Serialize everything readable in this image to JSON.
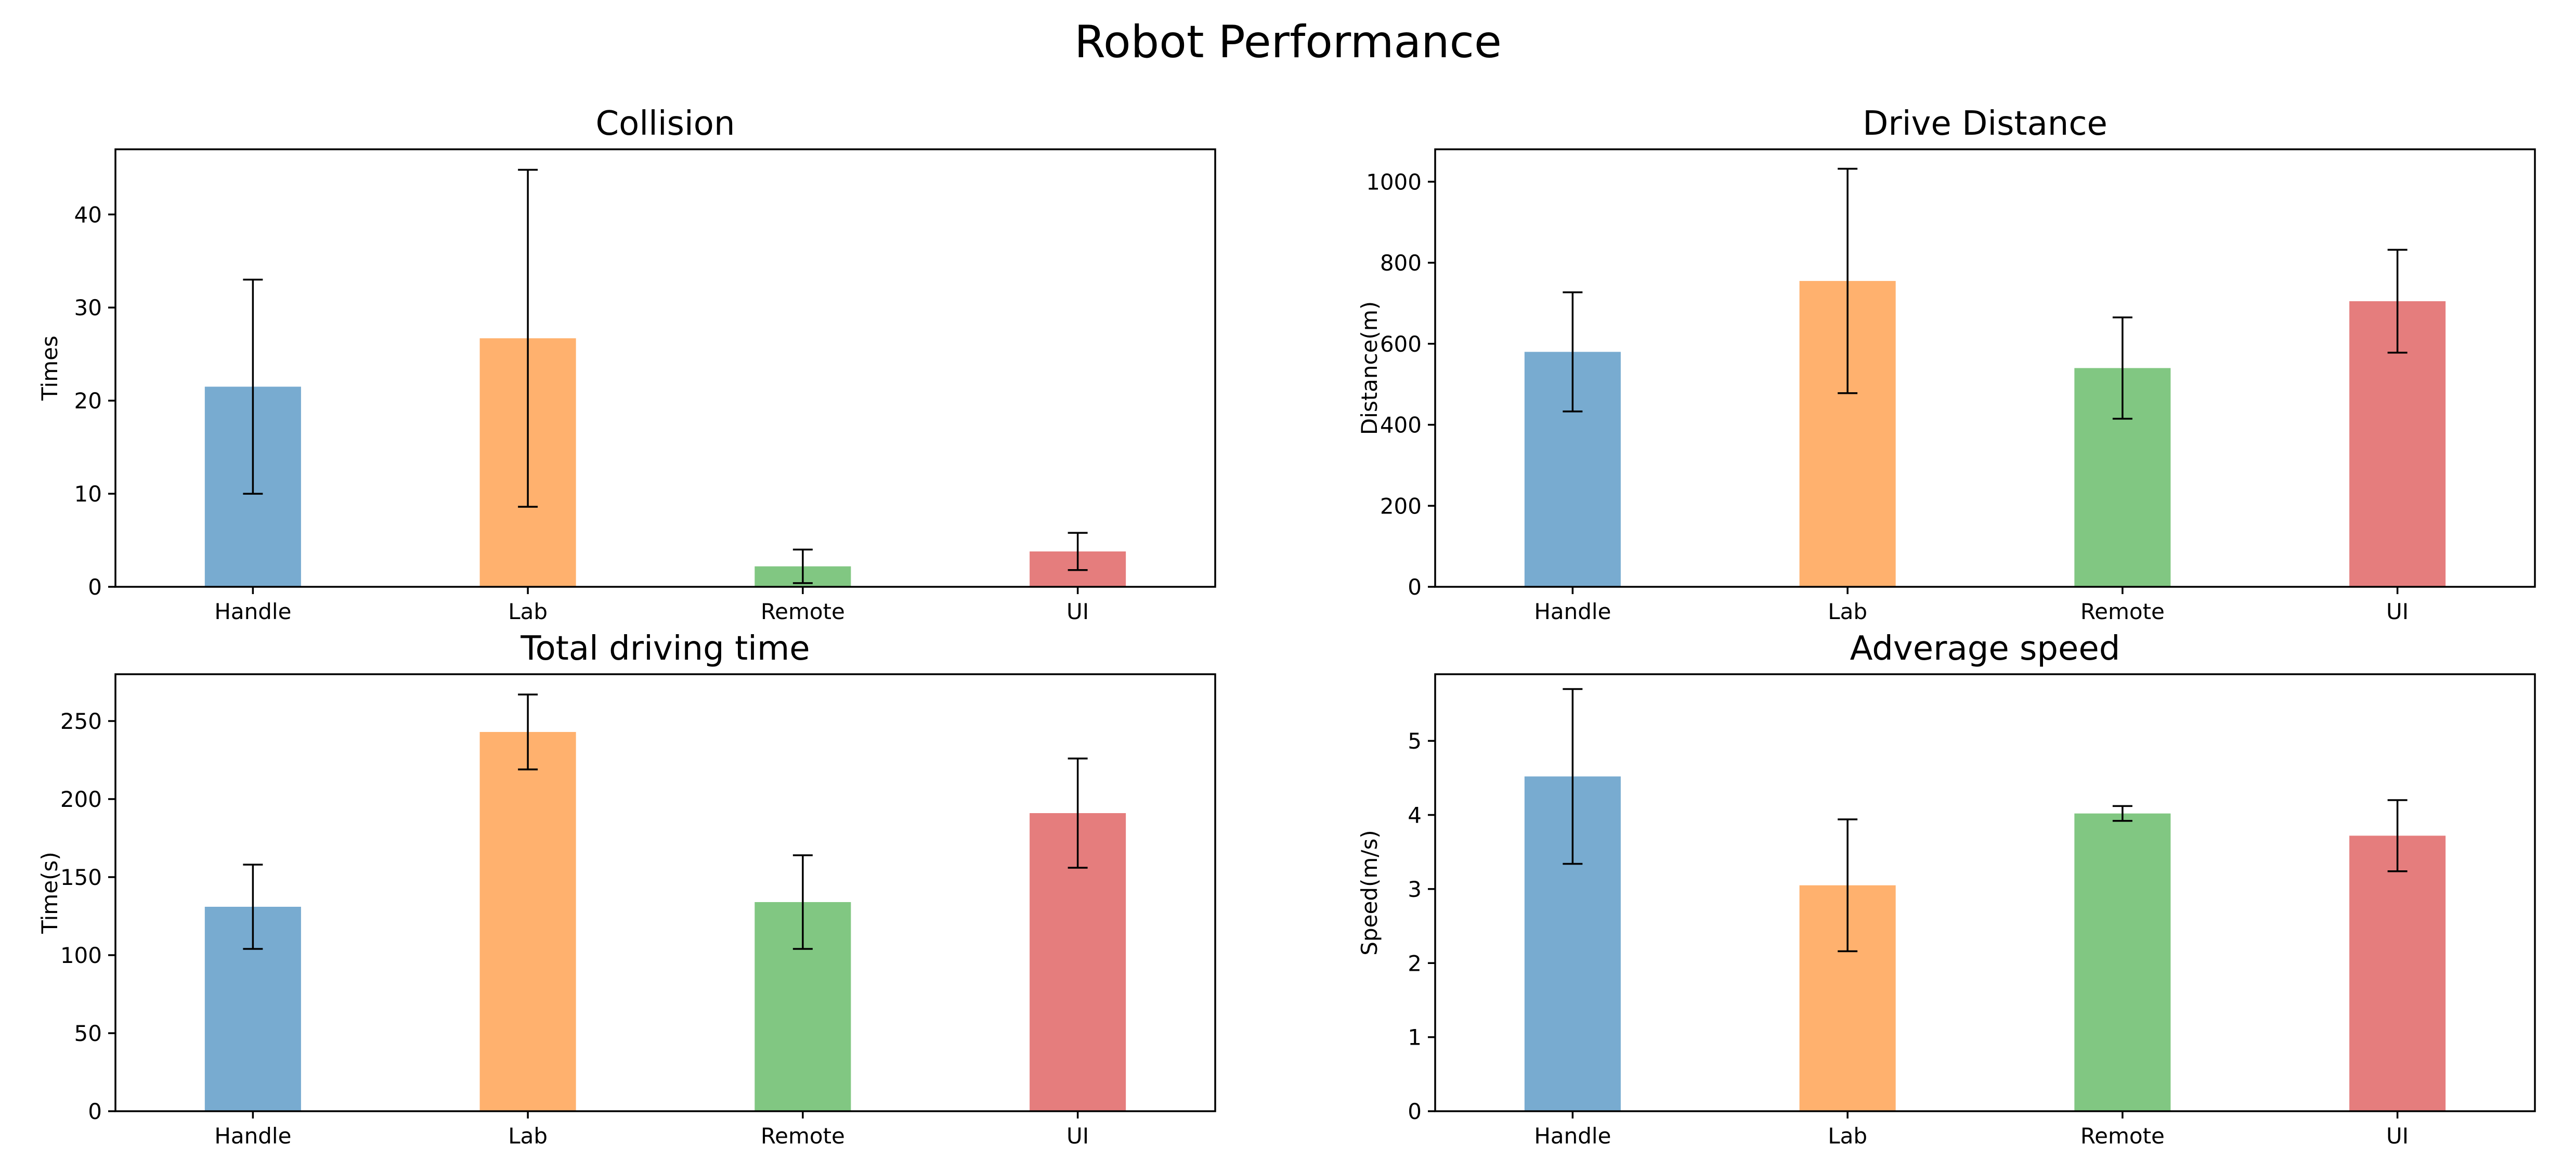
{
  "suptitle": "Robot Performance",
  "colors": {
    "Handle": "#78abd0",
    "Lab": "#ffb16e",
    "Remote": "#81c782",
    "UI": "#e57d7d"
  },
  "chart_data": [
    {
      "type": "bar",
      "title": "Collision",
      "xlabel": "",
      "ylabel": "Times",
      "categories": [
        "Handle",
        "Lab",
        "Remote",
        "UI"
      ],
      "values": [
        21.5,
        26.7,
        2.2,
        3.8
      ],
      "errors": [
        11.5,
        18.1,
        1.8,
        2.0
      ],
      "ylim": [
        0,
        47
      ],
      "yticks": [
        0,
        10,
        20,
        30,
        40
      ]
    },
    {
      "type": "bar",
      "title": "Drive Distance",
      "xlabel": "",
      "ylabel": "Distance(m)",
      "categories": [
        "Handle",
        "Lab",
        "Remote",
        "UI"
      ],
      "values": [
        580,
        755,
        540,
        705
      ],
      "errors": [
        147,
        277,
        125,
        127
      ],
      "ylim": [
        0,
        1080
      ],
      "yticks": [
        0,
        200,
        400,
        600,
        800,
        1000
      ]
    },
    {
      "type": "bar",
      "title": "Total driving time",
      "xlabel": "",
      "ylabel": "Time(s)",
      "categories": [
        "Handle",
        "Lab",
        "Remote",
        "UI"
      ],
      "values": [
        131,
        243,
        134,
        191
      ],
      "errors": [
        27,
        24,
        30,
        35
      ],
      "ylim": [
        0,
        280
      ],
      "yticks": [
        0,
        50,
        100,
        150,
        200,
        250
      ]
    },
    {
      "type": "bar",
      "title": "Adverage speed",
      "xlabel": "",
      "ylabel": "Speed(m/s)",
      "categories": [
        "Handle",
        "Lab",
        "Remote",
        "UI"
      ],
      "values": [
        4.52,
        3.05,
        4.02,
        3.72
      ],
      "errors": [
        1.18,
        0.89,
        0.1,
        0.48
      ],
      "ylim": [
        0,
        5.9
      ],
      "yticks": [
        0,
        1,
        2,
        3,
        4,
        5
      ]
    }
  ]
}
